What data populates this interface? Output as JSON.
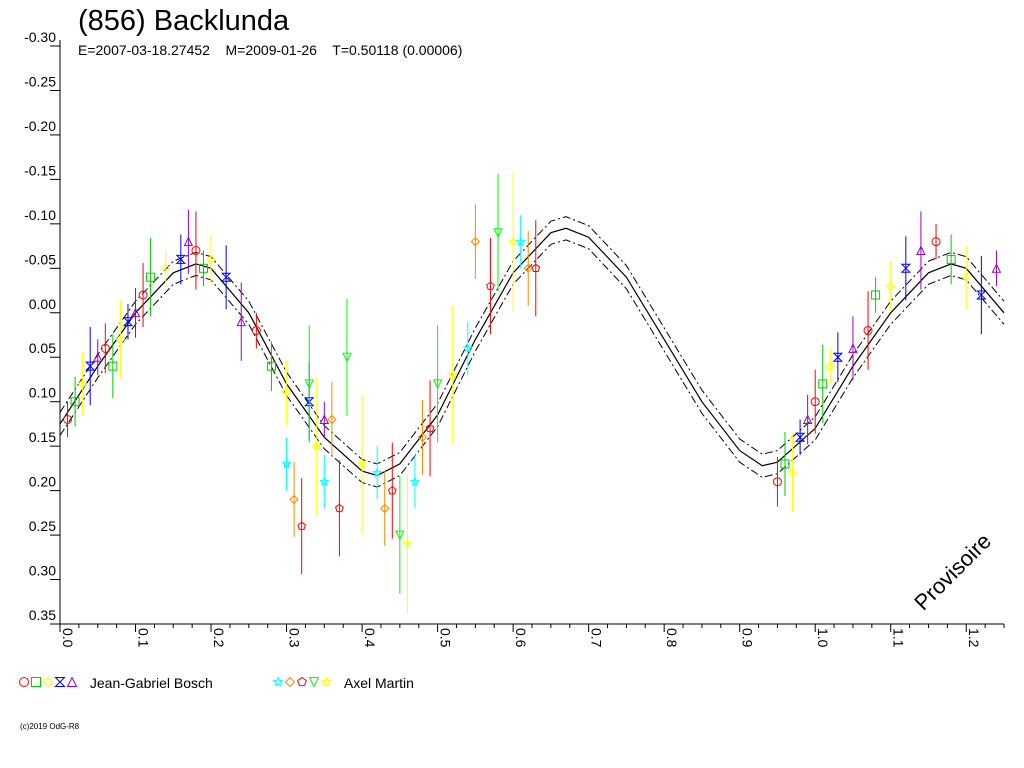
{
  "title": "(856) Backlunda",
  "subtitle": "E=2007-03-18.27452    M=2009-01-26    T=0.50118 (0.00006)",
  "watermark": "Provisoire",
  "copyright": "(c)2019 OdG-R8",
  "legend": {
    "groups": [
      {
        "name": "Jean-Gabriel Bosch",
        "symbols": [
          "circle",
          "square",
          "diamond",
          "hourglass",
          "triangle-up"
        ],
        "colors": [
          "#ff0000",
          "#00cc00",
          "#ffff00",
          "#0000ff",
          "#9900cc"
        ]
      },
      {
        "name": "Axel Martin",
        "symbols": [
          "star",
          "diamond",
          "pentagon",
          "triangle-down",
          "star"
        ],
        "colors": [
          "#00ffff",
          "#ff8800",
          "#ff0000",
          "#00ff00",
          "#ffff00"
        ]
      }
    ]
  },
  "chart_data": {
    "type": "scatter",
    "title": "(856) Backlunda",
    "xlabel": "",
    "ylabel": "",
    "xlim": [
      0.0,
      1.25
    ],
    "ylim": [
      -0.3,
      0.35
    ],
    "y_inverted": true,
    "x_ticks": [
      "0.0",
      "0.1",
      "0.2",
      "0.3",
      "0.4",
      "0.5",
      "0.6",
      "0.7",
      "0.8",
      "0.9",
      "1.0",
      "1.1",
      "1.2"
    ],
    "y_ticks": [
      "-0.30",
      "-0.25",
      "-0.20",
      "-0.15",
      "-0.10",
      "-0.05",
      "0.00",
      "0.05",
      "0.10",
      "0.15",
      "0.20",
      "0.25",
      "0.30",
      "0.35"
    ],
    "grid": false,
    "period_h": 0.50118,
    "model_curve": [
      [
        0.0,
        0.125
      ],
      [
        0.05,
        0.06
      ],
      [
        0.1,
        0.0
      ],
      [
        0.15,
        -0.045
      ],
      [
        0.18,
        -0.055
      ],
      [
        0.2,
        -0.05
      ],
      [
        0.25,
        0.0
      ],
      [
        0.3,
        0.08
      ],
      [
        0.35,
        0.14
      ],
      [
        0.4,
        0.178
      ],
      [
        0.42,
        0.183
      ],
      [
        0.45,
        0.17
      ],
      [
        0.5,
        0.115
      ],
      [
        0.55,
        0.03
      ],
      [
        0.6,
        -0.045
      ],
      [
        0.65,
        -0.09
      ],
      [
        0.67,
        -0.095
      ],
      [
        0.7,
        -0.085
      ],
      [
        0.75,
        -0.04
      ],
      [
        0.8,
        0.03
      ],
      [
        0.85,
        0.1
      ],
      [
        0.9,
        0.155
      ],
      [
        0.93,
        0.172
      ],
      [
        0.95,
        0.168
      ],
      [
        1.0,
        0.13
      ],
      [
        1.05,
        0.06
      ],
      [
        1.1,
        0.0
      ],
      [
        1.15,
        -0.045
      ],
      [
        1.18,
        -0.055
      ],
      [
        1.2,
        -0.05
      ],
      [
        1.25,
        0.0
      ]
    ],
    "model_envelope_offset": 0.013,
    "series": [
      {
        "name": "Jean-Gabriel Bosch",
        "colors": [
          "#ff0000",
          "#00cc00",
          "#ffff00",
          "#0000ff",
          "#9900cc"
        ],
        "points": [
          [
            0.01,
            0.12
          ],
          [
            0.02,
            0.1
          ],
          [
            0.03,
            0.08
          ],
          [
            0.04,
            0.06
          ],
          [
            0.05,
            0.05
          ],
          [
            0.06,
            0.04
          ],
          [
            0.07,
            0.06
          ],
          [
            0.08,
            0.03
          ],
          [
            0.09,
            0.01
          ],
          [
            0.1,
            0.0
          ],
          [
            0.11,
            -0.02
          ],
          [
            0.12,
            -0.04
          ],
          [
            0.14,
            -0.05
          ],
          [
            0.16,
            -0.06
          ],
          [
            0.17,
            -0.08
          ],
          [
            0.18,
            -0.07
          ],
          [
            0.19,
            -0.05
          ],
          [
            0.2,
            -0.06
          ],
          [
            0.22,
            -0.04
          ],
          [
            0.24,
            0.01
          ],
          [
            0.26,
            0.02
          ],
          [
            0.28,
            0.06
          ],
          [
            0.3,
            0.09
          ],
          [
            0.33,
            0.1
          ],
          [
            0.35,
            0.12
          ],
          [
            0.95,
            0.19
          ],
          [
            0.96,
            0.17
          ],
          [
            0.97,
            0.18
          ],
          [
            0.98,
            0.14
          ],
          [
            0.99,
            0.12
          ],
          [
            1.0,
            0.1
          ],
          [
            1.01,
            0.08
          ],
          [
            1.02,
            0.06
          ],
          [
            1.03,
            0.05
          ],
          [
            1.05,
            0.04
          ],
          [
            1.07,
            0.02
          ],
          [
            1.08,
            -0.02
          ],
          [
            1.1,
            -0.03
          ],
          [
            1.12,
            -0.05
          ],
          [
            1.14,
            -0.07
          ],
          [
            1.16,
            -0.08
          ],
          [
            1.18,
            -0.06
          ],
          [
            1.2,
            -0.04
          ],
          [
            1.22,
            -0.02
          ],
          [
            1.24,
            -0.05
          ]
        ]
      },
      {
        "name": "Axel Martin",
        "colors": [
          "#00ffff",
          "#ff8800",
          "#ff0000",
          "#00ff00",
          "#ffff00"
        ],
        "points": [
          [
            0.3,
            0.17
          ],
          [
            0.31,
            0.21
          ],
          [
            0.32,
            0.24
          ],
          [
            0.33,
            0.08
          ],
          [
            0.34,
            0.15
          ],
          [
            0.35,
            0.19
          ],
          [
            0.36,
            0.12
          ],
          [
            0.37,
            0.22
          ],
          [
            0.38,
            0.05
          ],
          [
            0.4,
            0.17
          ],
          [
            0.42,
            0.18
          ],
          [
            0.43,
            0.22
          ],
          [
            0.44,
            0.2
          ],
          [
            0.45,
            0.25
          ],
          [
            0.46,
            0.26
          ],
          [
            0.47,
            0.19
          ],
          [
            0.48,
            0.14
          ],
          [
            0.49,
            0.13
          ],
          [
            0.5,
            0.08
          ],
          [
            0.52,
            0.07
          ],
          [
            0.54,
            0.04
          ],
          [
            0.55,
            -0.08
          ],
          [
            0.57,
            -0.03
          ],
          [
            0.58,
            -0.09
          ],
          [
            0.6,
            -0.08
          ],
          [
            0.61,
            -0.08
          ],
          [
            0.62,
            -0.05
          ],
          [
            0.63,
            -0.05
          ]
        ]
      }
    ]
  }
}
